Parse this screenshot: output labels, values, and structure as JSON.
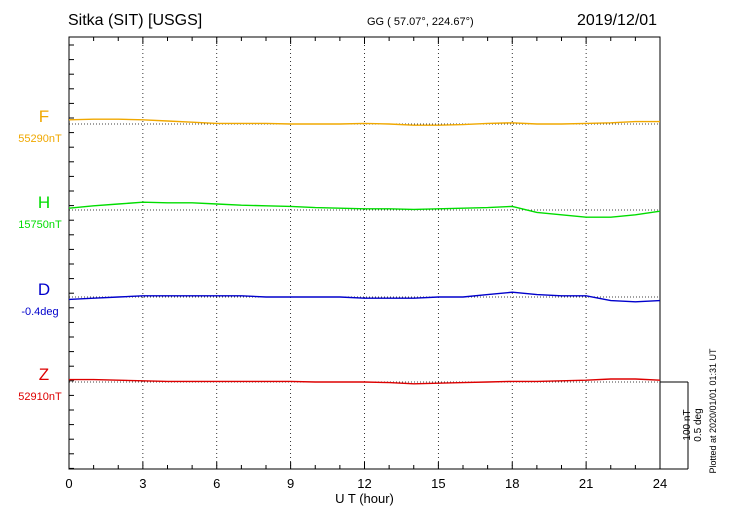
{
  "header": {
    "station": "Sitka (SIT)  [USGS]",
    "coords": "GG ( 57.07°, 224.67°)",
    "date": "2019/12/01"
  },
  "footer": {
    "plotted": "Plotted at 2020/01/01 01:31  UT"
  },
  "scale": {
    "nt": "100 nT",
    "deg": "0.5 deg"
  },
  "colors": {
    "F": "#f0a800",
    "H": "#00dd00",
    "D": "#0000cc",
    "Z": "#dd0000"
  },
  "chart_data": {
    "type": "line",
    "xlabel": "U T (hour)",
    "xlim": [
      0,
      24
    ],
    "xticks": [
      "0",
      "3",
      "6",
      "9",
      "12",
      "15",
      "18",
      "21",
      "24"
    ],
    "series": [
      {
        "name": "F",
        "baseline_label": "55290nT",
        "unit": "nT",
        "baseline": 55290,
        "x": [
          0,
          1,
          2,
          3,
          4,
          5,
          6,
          7,
          8,
          9,
          10,
          11,
          12,
          13,
          14,
          15,
          16,
          17,
          18,
          19,
          20,
          21,
          22,
          23,
          24
        ],
        "y": [
          55297,
          55298,
          55298,
          55297,
          55295,
          55293,
          55291,
          55291,
          55291,
          55290,
          55290,
          55290,
          55291,
          55290,
          55288,
          55288,
          55289,
          55291,
          55292,
          55290,
          55290,
          55291,
          55292,
          55294,
          55294
        ]
      },
      {
        "name": "H",
        "baseline_label": "15750nT",
        "unit": "nT",
        "baseline": 15750,
        "x": [
          0,
          1,
          2,
          3,
          4,
          5,
          6,
          7,
          8,
          9,
          10,
          11,
          12,
          13,
          14,
          15,
          16,
          17,
          18,
          19,
          20,
          21,
          22,
          23,
          24
        ],
        "y": [
          15753,
          15757,
          15760,
          15763,
          15762,
          15762,
          15760,
          15758,
          15757,
          15756,
          15754,
          15753,
          15752,
          15752,
          15751,
          15752,
          15753,
          15754,
          15756,
          15746,
          15742,
          15738,
          15738,
          15742,
          15748
        ]
      },
      {
        "name": "D",
        "baseline_label": "-0.4deg",
        "unit": "deg",
        "baseline": -0.4,
        "x": [
          0,
          1,
          2,
          3,
          4,
          5,
          6,
          7,
          8,
          9,
          10,
          11,
          12,
          13,
          14,
          15,
          16,
          17,
          18,
          19,
          20,
          21,
          22,
          23,
          24
        ],
        "y": [
          -0.42,
          -0.41,
          -0.4,
          -0.39,
          -0.39,
          -0.39,
          -0.39,
          -0.39,
          -0.4,
          -0.4,
          -0.4,
          -0.4,
          -0.41,
          -0.41,
          -0.41,
          -0.4,
          -0.4,
          -0.38,
          -0.36,
          -0.38,
          -0.39,
          -0.39,
          -0.43,
          -0.44,
          -0.43
        ]
      },
      {
        "name": "Z",
        "baseline_label": "52910nT",
        "unit": "nT",
        "baseline": 52910,
        "x": [
          0,
          1,
          2,
          3,
          4,
          5,
          6,
          7,
          8,
          9,
          10,
          11,
          12,
          13,
          14,
          15,
          16,
          17,
          18,
          19,
          20,
          21,
          22,
          23,
          24
        ],
        "y": [
          52914,
          52914,
          52913,
          52912,
          52911,
          52911,
          52911,
          52911,
          52911,
          52911,
          52910,
          52910,
          52910,
          52909,
          52907,
          52908,
          52909,
          52910,
          52911,
          52911,
          52912,
          52913,
          52915,
          52915,
          52913
        ]
      }
    ],
    "grid": "vertical dotted lines at 3-hour intervals",
    "legend": "left"
  }
}
